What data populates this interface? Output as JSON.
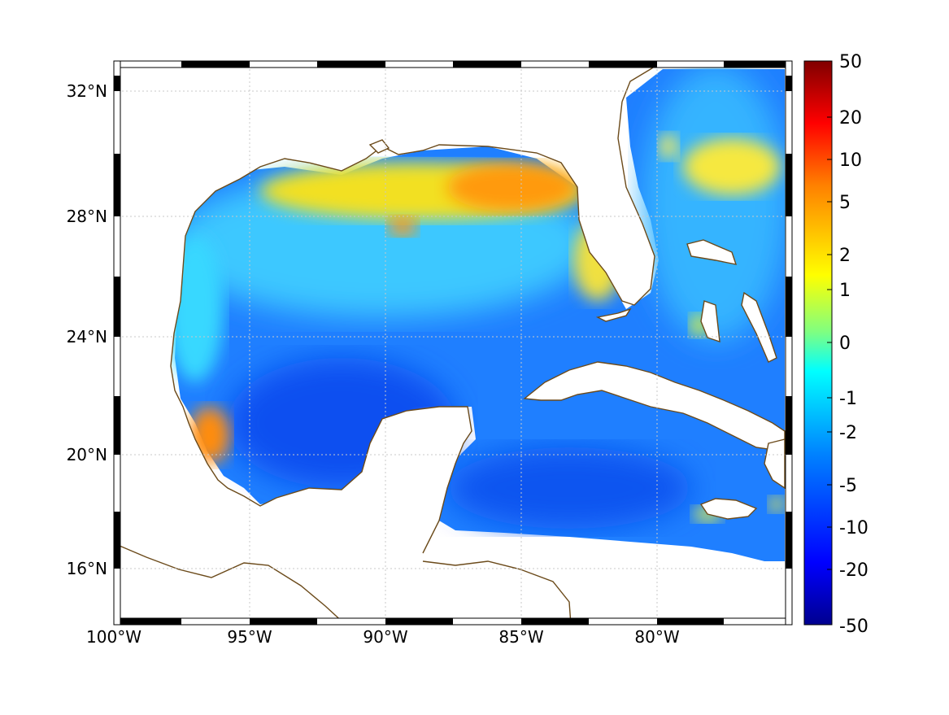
{
  "map": {
    "lat_labels": [
      "32°N",
      "28°N",
      "24°N",
      "20°N",
      "16°N"
    ],
    "lon_labels": [
      "100°W",
      "95°W",
      "90°W",
      "85°W",
      "80°W"
    ],
    "colorbar": {
      "tick_labels": [
        "50",
        "20",
        "10",
        "5",
        "2",
        "1",
        "0",
        "-1",
        "-2",
        "-5",
        "-10",
        "-20",
        "-50"
      ],
      "colormap": [
        "#00008f",
        "#0000ff",
        "#0080ff",
        "#00ffff",
        "#80ff80",
        "#ffff00",
        "#ff8000",
        "#ff0000",
        "#800000"
      ]
    },
    "colors": {
      "coastline": "#6b4a1a",
      "land": "#ffffff",
      "grid": "#c8c8c8"
    }
  }
}
